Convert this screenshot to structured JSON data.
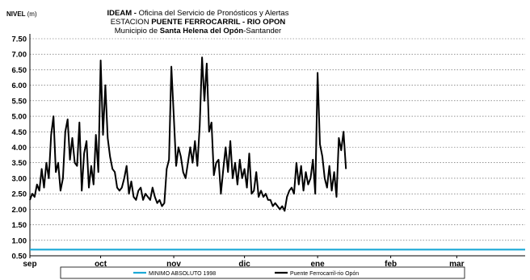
{
  "chart_data": {
    "type": "line",
    "ylabel": "NIVEL",
    "ylabel_unit": "(m)",
    "title_lines": [
      {
        "bold": "IDEAM - ",
        "normal": "Oficina del Servicio de Pronósticos y Alertas"
      },
      {
        "normal": "ESTACION ",
        "bold": "PUENTE FERROCARRIL - RIO OPON"
      },
      {
        "normal": "Municipio de ",
        "bold": "Santa Helena del Opón",
        "tail": "-Santander"
      }
    ],
    "ylim": [
      0.5,
      7.5
    ],
    "yticks": [
      "7.50",
      "7.00",
      "6.50",
      "6.00",
      "5.50",
      "5.00",
      "4.50",
      "4.00",
      "3.50",
      "3.00",
      "2.50",
      "2.00",
      "1.50",
      "1.00",
      "0.50"
    ],
    "xlim": [
      0,
      210
    ],
    "xticks": [
      {
        "label": "sep",
        "day": 0
      },
      {
        "label": "oct",
        "day": 30
      },
      {
        "label": "nov",
        "day": 61
      },
      {
        "label": "dic",
        "day": 91
      },
      {
        "label": "ene",
        "day": 122
      },
      {
        "label": "feb",
        "day": 153
      },
      {
        "label": "mar",
        "day": 181
      }
    ],
    "grid": "horizontal-dotted",
    "legend_position": "bottom",
    "series": [
      {
        "name": "MINIMO ABSOLUTO 1998",
        "color": "#1ba9d6",
        "constant": 0.7
      },
      {
        "name": "Puente Ferrocarril-rio Opón",
        "color": "#000000",
        "x": [
          0,
          1,
          2,
          3,
          4,
          5,
          6,
          7,
          8,
          9,
          10,
          11,
          12,
          13,
          14,
          15,
          16,
          17,
          18,
          19,
          20,
          21,
          22,
          23,
          24,
          25,
          26,
          27,
          28,
          29,
          30,
          31,
          32,
          33,
          34,
          35,
          36,
          37,
          38,
          39,
          40,
          41,
          42,
          43,
          44,
          45,
          46,
          47,
          48,
          49,
          50,
          51,
          52,
          53,
          54,
          55,
          56,
          57,
          58,
          59,
          60,
          61,
          62,
          63,
          64,
          65,
          66,
          67,
          68,
          69,
          70,
          71,
          72,
          73,
          74,
          75,
          76,
          77,
          78,
          79,
          80,
          81,
          82,
          83,
          84,
          85,
          86,
          87,
          88,
          89,
          90,
          91,
          92,
          93,
          94,
          95,
          96,
          97,
          98,
          99,
          100,
          101,
          102,
          103,
          104,
          105,
          106,
          107,
          108,
          109,
          110,
          111,
          112,
          113,
          114,
          115,
          116,
          117,
          118,
          119,
          120,
          121,
          122,
          123,
          124,
          125,
          126,
          127,
          128,
          129,
          130,
          131,
          132,
          133,
          134
        ],
        "y": [
          2.3,
          2.5,
          2.4,
          2.8,
          2.6,
          3.3,
          2.7,
          3.5,
          3.0,
          4.4,
          5.0,
          3.2,
          3.5,
          2.6,
          3.0,
          4.5,
          4.9,
          3.6,
          4.3,
          3.5,
          3.4,
          4.8,
          2.6,
          3.8,
          4.2,
          2.7,
          3.4,
          2.8,
          4.4,
          3.2,
          6.8,
          4.4,
          6.0,
          4.3,
          3.7,
          3.3,
          3.2,
          2.7,
          2.6,
          2.7,
          3.0,
          3.4,
          2.5,
          2.9,
          2.4,
          2.3,
          2.6,
          2.7,
          2.3,
          2.5,
          2.4,
          2.3,
          2.7,
          2.4,
          2.2,
          2.3,
          2.1,
          2.2,
          3.3,
          3.6,
          6.6,
          5.0,
          3.4,
          4.0,
          3.7,
          3.2,
          3.0,
          3.5,
          4.0,
          3.5,
          4.2,
          3.4,
          4.7,
          6.9,
          5.5,
          6.7,
          4.5,
          4.8,
          3.1,
          3.5,
          3.6,
          2.5,
          3.3,
          4.0,
          3.2,
          4.2,
          3.0,
          3.5,
          2.8,
          3.6,
          3.0,
          3.3,
          2.7,
          3.8,
          2.5,
          2.6,
          3.2,
          2.4,
          2.6,
          2.4,
          2.5,
          2.3,
          2.3,
          2.1,
          2.2,
          2.1,
          2.0,
          2.1,
          1.95,
          2.4,
          2.6,
          2.7,
          2.5,
          3.5,
          2.8,
          3.4,
          2.6,
          3.2,
          2.8,
          3.0,
          3.6,
          2.5,
          6.4,
          4.1,
          3.7,
          3.0,
          2.7,
          3.4,
          2.6,
          3.2,
          2.4,
          4.3,
          3.9,
          4.5,
          3.3
        ]
      }
    ]
  }
}
